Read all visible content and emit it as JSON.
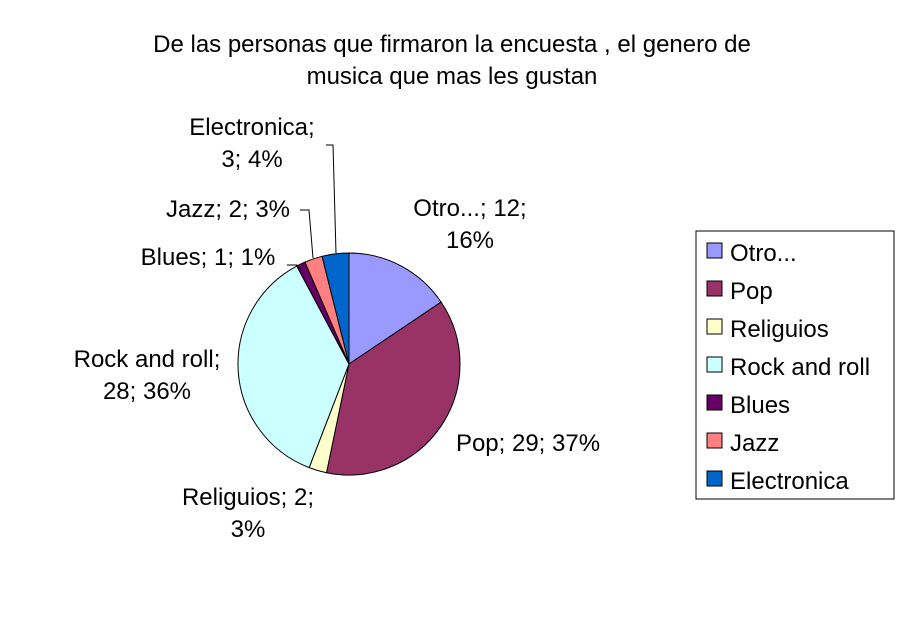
{
  "chart_data": {
    "type": "pie",
    "title": [
      "De las personas que firmaron la encuesta  , el genero de",
      "musica que mas les gustan"
    ],
    "categories": [
      "Otro...",
      "Pop",
      "Religuios",
      "Rock and roll",
      "Blues",
      "Jazz",
      "Electronica"
    ],
    "values": [
      12,
      29,
      2,
      28,
      1,
      2,
      3
    ],
    "percentages": [
      "16%",
      "37%",
      "3%",
      "36%",
      "1%",
      "3%",
      "4%"
    ],
    "data_labels": [
      [
        "Otro...; 12;",
        "16%"
      ],
      [
        "Pop; 29; 37%"
      ],
      [
        "Religuios; 2;",
        "3%"
      ],
      [
        "Rock and roll;",
        "28; 36%"
      ],
      [
        "Blues; 1; 1%"
      ],
      [
        "Jazz; 2; 3%"
      ],
      [
        "Electronica;",
        "3; 4%"
      ]
    ],
    "colors": [
      "#9999ff",
      "#993366",
      "#ffffcc",
      "#ccffff",
      "#660066",
      "#ff8080",
      "#0066cc"
    ],
    "legend_position": "right"
  }
}
